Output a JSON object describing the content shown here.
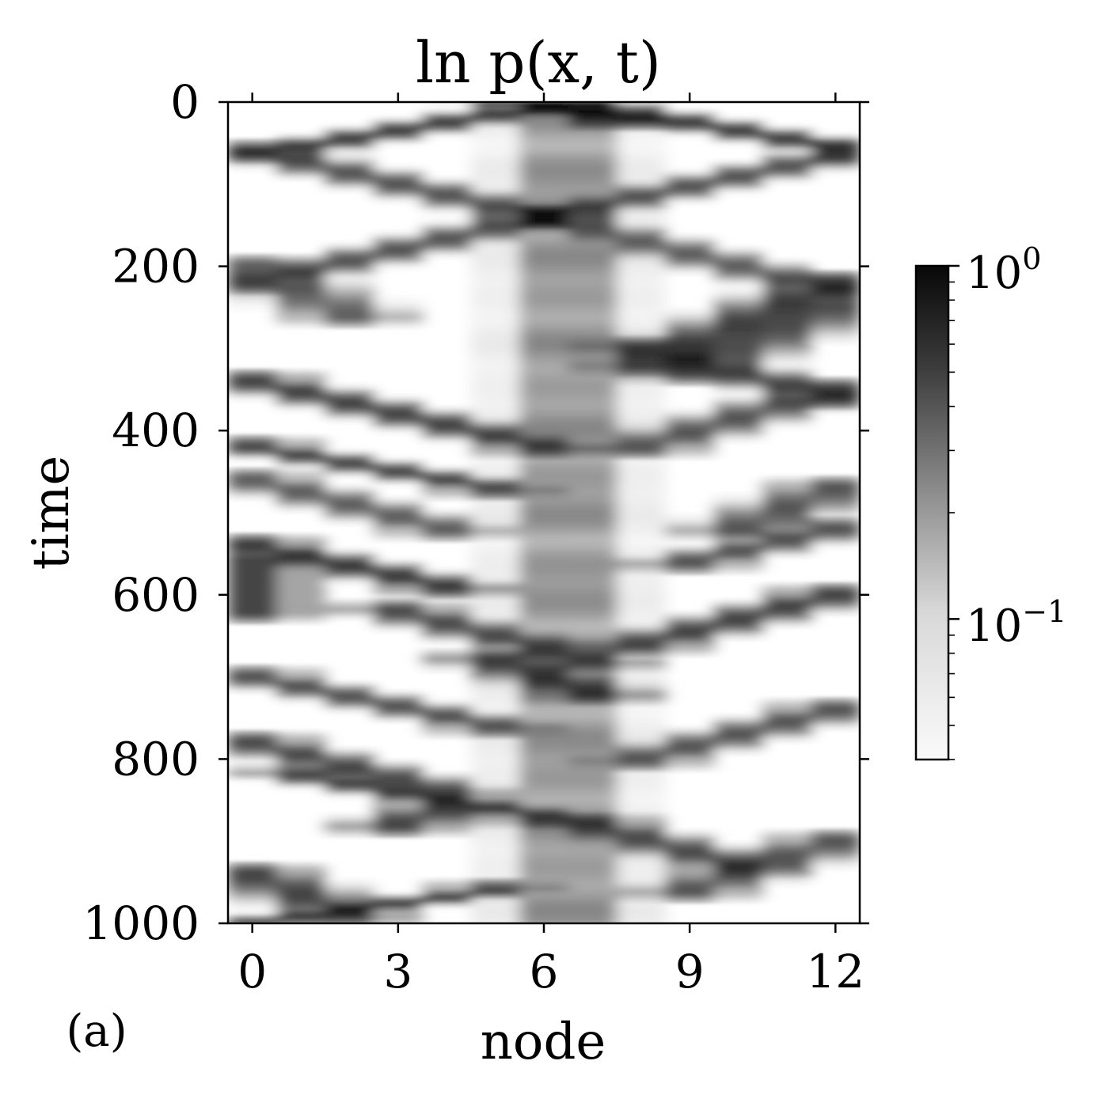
{
  "chart_data": {
    "type": "heatmap",
    "title": "ln p(x, t)",
    "xlabel": "node",
    "ylabel": "time",
    "panel_label": "(a)",
    "x_ticks": [
      "0",
      "3",
      "6",
      "9",
      "12"
    ],
    "y_ticks": [
      "0",
      "200",
      "400",
      "600",
      "800",
      "1000"
    ],
    "x_tick_values": [
      0,
      3,
      6,
      9,
      12
    ],
    "y_tick_values": [
      0,
      200,
      400,
      600,
      800,
      1000
    ],
    "xlim": [
      -0.5,
      12.5
    ],
    "ylim": [
      1000,
      0
    ],
    "nodes": 13,
    "time_steps": 1000,
    "colormap": "gray_r",
    "color_scale": "log",
    "colorbar": {
      "major_ticks": [
        {
          "base": "10",
          "exp": "0",
          "value": 1.0
        },
        {
          "base": "10",
          "exp": "−1",
          "value": 0.1
        }
      ],
      "range": [
        0.04,
        1.0
      ]
    },
    "colors": {
      "low": "#ffffff",
      "high": "#000000",
      "axis": "#000000"
    },
    "grid": false
  }
}
